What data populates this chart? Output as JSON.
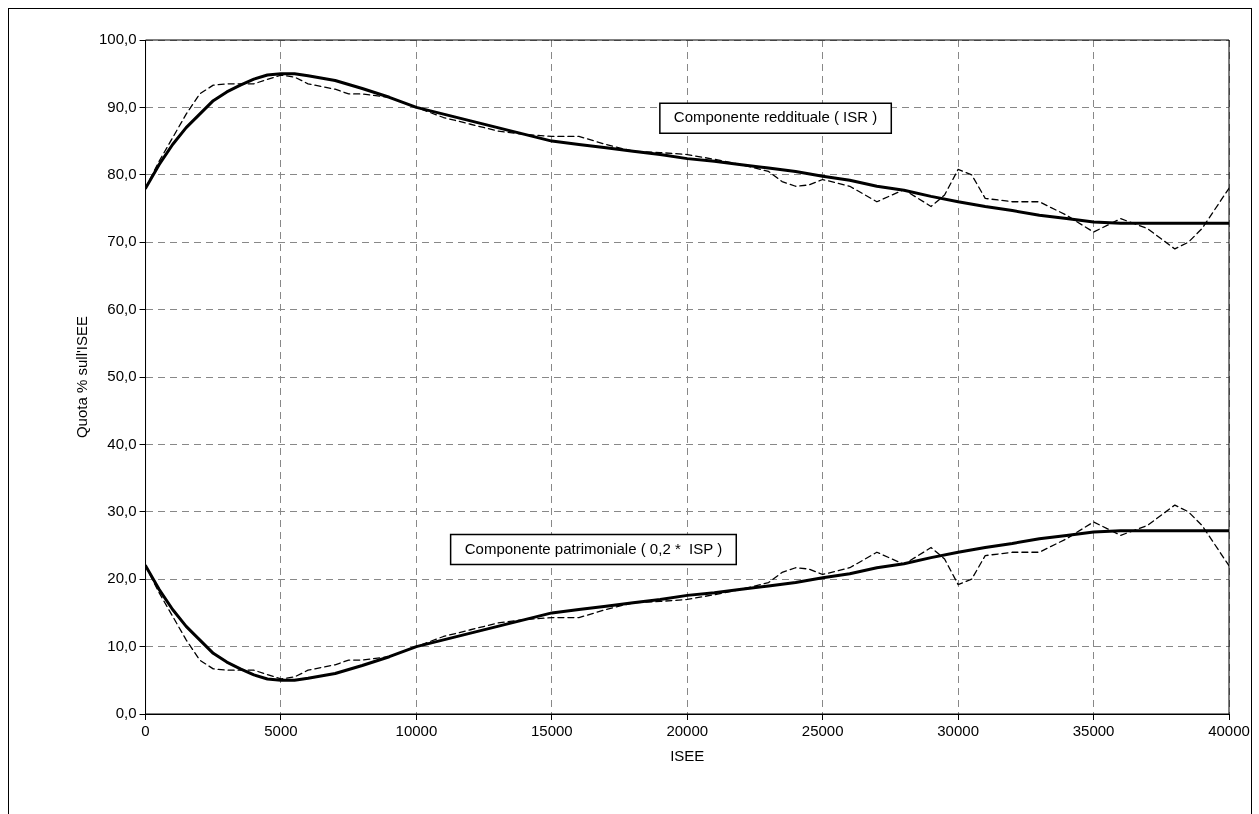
{
  "chart_data": {
    "type": "line",
    "xlabel": "ISEE",
    "ylabel": "Quota % sull'ISEE",
    "xlim": [
      0,
      40000
    ],
    "xticks": [
      0,
      5000,
      10000,
      15000,
      20000,
      25000,
      30000,
      35000,
      40000
    ],
    "ylim": [
      0,
      100
    ],
    "yticks": [
      {
        "value": 0,
        "label": "0,0"
      },
      {
        "value": 10,
        "label": "10,0"
      },
      {
        "value": 20,
        "label": "20,0"
      },
      {
        "value": 30,
        "label": "30,0"
      },
      {
        "value": 40,
        "label": "40,0"
      },
      {
        "value": 50,
        "label": "50,0"
      },
      {
        "value": 60,
        "label": "60,0"
      },
      {
        "value": 70,
        "label": "70,0"
      },
      {
        "value": 80,
        "label": "80,0"
      },
      {
        "value": 90,
        "label": "90,0"
      },
      {
        "value": 100,
        "label": "100,0"
      }
    ],
    "grid": true,
    "legend": false,
    "marker": "none",
    "annotations": [
      "Componente reddituale ( ISR )",
      "Componente patrimoniale ( 0,2 *  ISP )"
    ],
    "series": [
      {
        "color": "#000000",
        "line_style": "dashed",
        "x": [
          0,
          500,
          1000,
          1500,
          2000,
          2500,
          3000,
          4000,
          5000,
          5500,
          6000,
          7000,
          7500,
          8000,
          9000,
          10000,
          11000,
          12000,
          13000,
          14000,
          15000,
          16000,
          17000,
          18000,
          19000,
          20000,
          21000,
          22000,
          23000,
          23500,
          24000,
          24500,
          25000,
          26000,
          27000,
          28000,
          29000,
          29500,
          30000,
          30500,
          31000,
          32000,
          33000,
          34000,
          35000,
          35500,
          36000,
          37000,
          38000,
          38500,
          39000,
          40000
        ],
        "values": [
          78,
          82,
          85.5,
          89,
          92,
          93.3,
          93.5,
          93.5,
          94.8,
          94.5,
          93.5,
          92.7,
          92,
          92,
          91.5,
          90,
          88.5,
          87.5,
          86.5,
          86,
          85.7,
          85.7,
          84.5,
          83.5,
          83.3,
          83,
          82.3,
          81.5,
          80.5,
          79,
          78.3,
          78.5,
          79.3,
          78.3,
          76,
          77.8,
          75.3,
          77,
          80.8,
          80,
          76.5,
          76,
          76,
          74,
          71.5,
          72.5,
          73.5,
          72,
          69,
          70,
          72,
          78
        ]
      },
      {
        "color": "#000000",
        "line_style": "dashed",
        "x": [
          0,
          500,
          1000,
          1500,
          2000,
          2500,
          3000,
          4000,
          5000,
          5500,
          6000,
          7000,
          7500,
          8000,
          9000,
          10000,
          11000,
          12000,
          13000,
          14000,
          15000,
          16000,
          17000,
          18000,
          19000,
          20000,
          21000,
          22000,
          23000,
          23500,
          24000,
          24500,
          25000,
          26000,
          27000,
          28000,
          29000,
          29500,
          30000,
          30500,
          31000,
          32000,
          33000,
          34000,
          35000,
          35500,
          36000,
          37000,
          38000,
          38500,
          39000,
          40000
        ],
        "values": [
          22,
          18,
          14.5,
          11,
          8,
          6.7,
          6.5,
          6.5,
          5.2,
          5.5,
          6.5,
          7.3,
          8,
          8,
          8.5,
          10,
          11.5,
          12.5,
          13.5,
          14,
          14.3,
          14.3,
          15.5,
          16.5,
          16.7,
          17,
          17.7,
          18.5,
          19.5,
          21,
          21.7,
          21.5,
          20.7,
          21.7,
          24,
          22.2,
          24.7,
          23,
          19.2,
          20,
          23.5,
          24,
          24,
          26,
          28.5,
          27.5,
          26.5,
          28,
          31,
          30,
          28,
          22
        ]
      },
      {
        "color": "#000000",
        "line_style": "solid",
        "x": [
          0,
          500,
          1000,
          1500,
          2000,
          2500,
          3000,
          3500,
          4000,
          4500,
          5000,
          5500,
          6000,
          7000,
          8000,
          9000,
          10000,
          11000,
          12000,
          13000,
          14000,
          15000,
          16000,
          17000,
          18000,
          19000,
          20000,
          21000,
          22000,
          23000,
          24000,
          25000,
          26000,
          27000,
          28000,
          29000,
          30000,
          31000,
          32000,
          33000,
          34000,
          35000,
          36000,
          37000,
          38000,
          39000,
          40000
        ],
        "values": [
          78,
          81.5,
          84.5,
          87,
          89,
          91,
          92.3,
          93.3,
          94.2,
          94.8,
          95,
          95,
          94.7,
          94,
          92.8,
          91.5,
          90,
          89,
          88,
          87,
          86,
          85,
          84.5,
          84,
          83.5,
          83,
          82.4,
          82,
          81.5,
          81,
          80.5,
          79.8,
          79.2,
          78.3,
          77.7,
          76.8,
          76,
          75.3,
          74.7,
          74,
          73.5,
          73,
          72.8,
          72.8,
          72.8,
          72.8,
          72.8
        ]
      },
      {
        "color": "#000000",
        "line_style": "solid",
        "x": [
          0,
          500,
          1000,
          1500,
          2000,
          2500,
          3000,
          3500,
          4000,
          4500,
          5000,
          5500,
          6000,
          7000,
          8000,
          9000,
          10000,
          11000,
          12000,
          13000,
          14000,
          15000,
          16000,
          17000,
          18000,
          19000,
          20000,
          21000,
          22000,
          23000,
          24000,
          25000,
          26000,
          27000,
          28000,
          29000,
          30000,
          31000,
          32000,
          33000,
          34000,
          35000,
          36000,
          37000,
          38000,
          39000,
          40000
        ],
        "values": [
          22,
          18.5,
          15.5,
          13,
          11,
          9,
          7.7,
          6.7,
          5.8,
          5.2,
          5,
          5,
          5.3,
          6,
          7.2,
          8.5,
          10,
          11,
          12,
          13,
          14,
          15,
          15.5,
          16,
          16.5,
          17,
          17.6,
          18,
          18.5,
          19,
          19.5,
          20.2,
          20.8,
          21.7,
          22.3,
          23.2,
          24,
          24.7,
          25.3,
          26,
          26.5,
          27,
          27.2,
          27.2,
          27.2,
          27.2,
          27.2
        ]
      }
    ]
  }
}
